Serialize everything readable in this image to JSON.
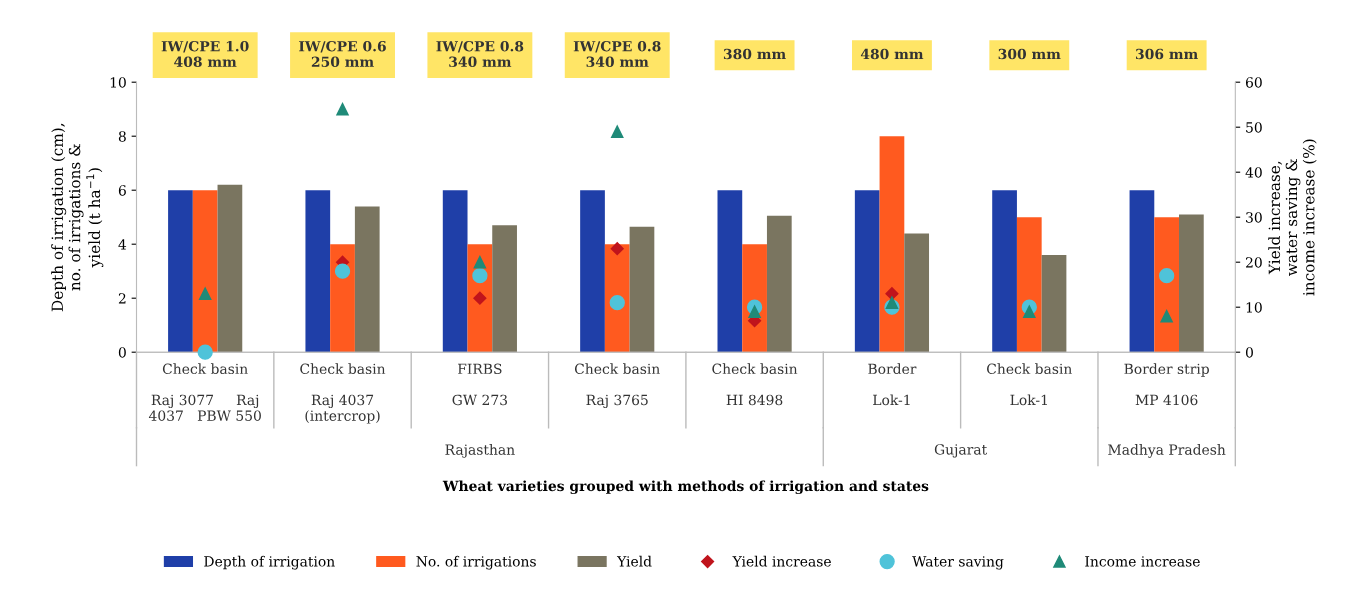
{
  "chart_data": {
    "type": "bar",
    "ylabel": "Depth of irrigation (cm),\nno. of irrigations &\nyield (t ha$^{−1}$)",
    "y2label": "Yield increase,\nwater saving &\nincome increase (%)",
    "categories": [
      "Check basin\n\nRaj 3077     Raj\n4037   PBW 550",
      "Check basin\n\nRaj 4037\n(intercrop)",
      "FIRBS\n\nGW 273\n",
      "Check basin\n\nRaj 3765\n",
      "Check basin\n\nHI 8498\n",
      "Border\n\nLok-1\n",
      "Check basin\n\nLok-1\n",
      "Border strip\n\nMP 4106\n"
    ],
    "series": [
      {
        "name": "Depth of irrigation",
        "color": "#1f3fa8",
        "values": [
          6,
          6,
          6,
          6,
          6,
          6,
          6,
          6
        ]
      },
      {
        "name": "No. of irrigations",
        "color": "#ff5a1f",
        "values": [
          6,
          4,
          4,
          4,
          4,
          8,
          5,
          5
        ]
      },
      {
        "name": "Yield",
        "color": "#7a7560",
        "values": [
          6.2,
          5.4,
          4.7,
          4.65,
          5.05,
          4.4,
          3.6,
          5.1
        ]
      },
      {
        "name": "Yield increase",
        "type": "scatter",
        "axis": "y2",
        "marker": "diamond",
        "color": "#c0141c",
        "values": [
          null,
          20,
          12,
          23,
          7,
          13,
          null,
          null
        ]
      },
      {
        "name": "Water saving",
        "type": "scatter",
        "axis": "y2",
        "marker": "circle",
        "color": "#4fc3d9",
        "values": [
          0,
          18,
          17,
          11,
          10,
          10,
          10,
          17
        ]
      },
      {
        "name": "Income increase",
        "type": "scatter",
        "axis": "y2",
        "marker": "triangle",
        "color": "#1f8a78",
        "values": [
          13,
          54,
          20,
          49,
          9,
          11,
          9,
          8
        ]
      }
    ],
    "ylim": [
      0,
      10
    ],
    "yticks": [
      0,
      2,
      4,
      6,
      8,
      10
    ],
    "y2lim": [
      0,
      60
    ],
    "y2ticks": [
      0,
      10,
      20,
      30,
      40,
      50,
      60
    ],
    "annotations": [
      "IW/CPE 1.0\n408 mm",
      "IW/CPE 0.6\n250 mm",
      "IW/CPE 0.8\n340 mm",
      "IW/CPE 0.8\n340 mm",
      "380 mm",
      "480 mm",
      "300 mm",
      "306 mm",
      "Rajasthan",
      "Gujarat",
      "Madhya Pradesh",
      "Wheat varieties grouped with methods of irrigation and states"
    ],
    "grid": false,
    "legend": "bottom"
  }
}
